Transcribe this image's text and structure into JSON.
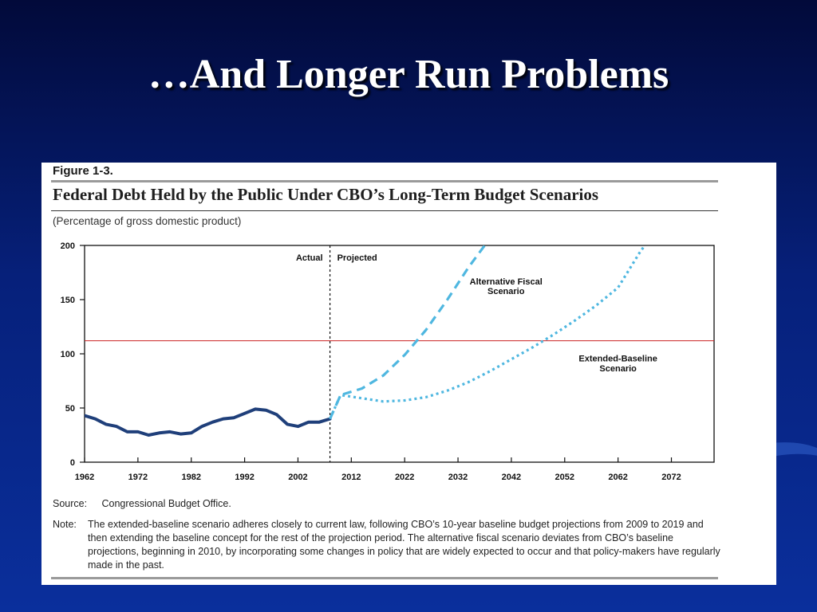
{
  "slide": {
    "title": "…And Longer Run Problems"
  },
  "figure": {
    "label": "Figure 1-3.",
    "title": "Federal Debt Held by the Public Under CBO’s Long-Term Budget Scenarios",
    "subtitle": "(Percentage of gross domestic product)",
    "source_label": "Source:",
    "source_text": "Congressional Budget Office.",
    "note_label": "Note:",
    "note_text": "The extended-baseline scenario adheres closely to current law, following CBO’s 10-year baseline budget projections from 2009 to 2019 and then extending the baseline concept for the rest of the projection period. The alternative fiscal scenario deviates from CBO’s baseline projections, beginning in 2010, by incorporating some changes in policy that are widely expected to occur and that policy-makers have regularly made in the past."
  },
  "chart_data": {
    "type": "line",
    "xlabel": "",
    "ylabel": "",
    "xlim": [
      1962,
      2080
    ],
    "ylim": [
      0,
      200
    ],
    "x_ticks": [
      1962,
      1972,
      1982,
      1992,
      2002,
      2012,
      2022,
      2032,
      2042,
      2052,
      2062,
      2072
    ],
    "y_ticks": [
      0,
      50,
      100,
      150,
      200
    ],
    "grid": false,
    "reference_line": {
      "y": 112,
      "color": "#cc2222"
    },
    "divider": {
      "x": 2008,
      "left_label": "Actual",
      "right_label": "Projected"
    },
    "series": [
      {
        "name": "Actual",
        "color": "#1f3f7a",
        "style": "solid",
        "x": [
          1962,
          1964,
          1966,
          1968,
          1970,
          1972,
          1974,
          1976,
          1978,
          1980,
          1982,
          1984,
          1986,
          1988,
          1990,
          1992,
          1994,
          1996,
          1998,
          2000,
          2002,
          2004,
          2006,
          2008
        ],
        "y": [
          43,
          40,
          35,
          33,
          28,
          28,
          25,
          27,
          28,
          26,
          27,
          33,
          37,
          40,
          41,
          45,
          49,
          48,
          44,
          35,
          33,
          37,
          37,
          40
        ]
      },
      {
        "name": "Alternative Fiscal Scenario",
        "color": "#4fb7e0",
        "style": "dashed",
        "x": [
          2008,
          2010,
          2014,
          2018,
          2022,
          2026,
          2030,
          2034,
          2037
        ],
        "y": [
          40,
          62,
          68,
          80,
          99,
          122,
          150,
          180,
          200
        ]
      },
      {
        "name": "Extended-Baseline Scenario",
        "color": "#4fb7e0",
        "style": "dotted",
        "x": [
          2008,
          2010,
          2014,
          2018,
          2022,
          2026,
          2030,
          2034,
          2038,
          2042,
          2046,
          2050,
          2054,
          2058,
          2062,
          2066,
          2067
        ],
        "y": [
          40,
          62,
          59,
          56,
          57,
          60,
          66,
          74,
          84,
          95,
          106,
          118,
          131,
          145,
          161,
          193,
          200
        ]
      }
    ],
    "annotations": [
      {
        "text": "Alternative Fiscal",
        "x": 2041,
        "y": 164
      },
      {
        "text": "Scenario",
        "x": 2041,
        "y": 155
      },
      {
        "text": "Extended-Baseline",
        "x": 2062,
        "y": 93
      },
      {
        "text": "Scenario",
        "x": 2062,
        "y": 84
      }
    ]
  }
}
